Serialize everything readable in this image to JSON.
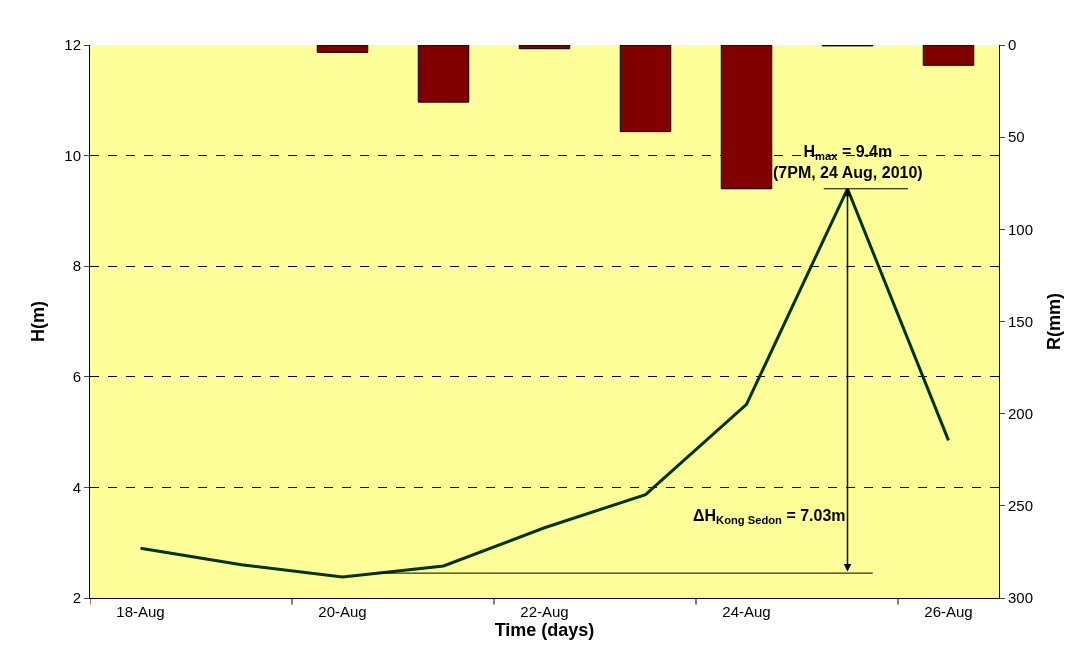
{
  "chart_data": {
    "type": "line",
    "xlabel": "Time (days)",
    "ylabel": "H(m)",
    "y2label": "R(mm)",
    "categories": [
      "18-Aug",
      null,
      "20-Aug",
      null,
      "22-Aug",
      null,
      "24-Aug",
      null,
      "26-Aug"
    ],
    "series": [
      {
        "type": "bar",
        "axis": "y2",
        "color": "#800000",
        "values": [
          null,
          null,
          4,
          31,
          2,
          47,
          78,
          0.5,
          11
        ]
      },
      {
        "color": "#003300",
        "values": [
          2.9,
          2.6,
          2.38,
          2.58,
          3.27,
          3.87,
          5.5,
          9.4,
          4.85
        ]
      }
    ],
    "ylim": [
      2,
      12
    ],
    "yticks": [
      2,
      4,
      6,
      8,
      10,
      12
    ],
    "y2lim": [
      300,
      0
    ],
    "y2ticks": [
      0,
      50,
      100,
      150,
      200,
      250,
      300
    ],
    "grid": "y",
    "line_style": "solid",
    "annotations": [
      {
        "text": "H$_{max}$ = 9.4m\n(7PM, 24 Aug, 2010)",
        "y": 9.4
      },
      "ΔH$_{Kong Sedon}$ = 7.03m"
    ],
    "ref_lines": [
      {
        "axis": "y",
        "value": 2.45,
        "color": "#000000",
        "line_style": "solid"
      }
    ]
  }
}
